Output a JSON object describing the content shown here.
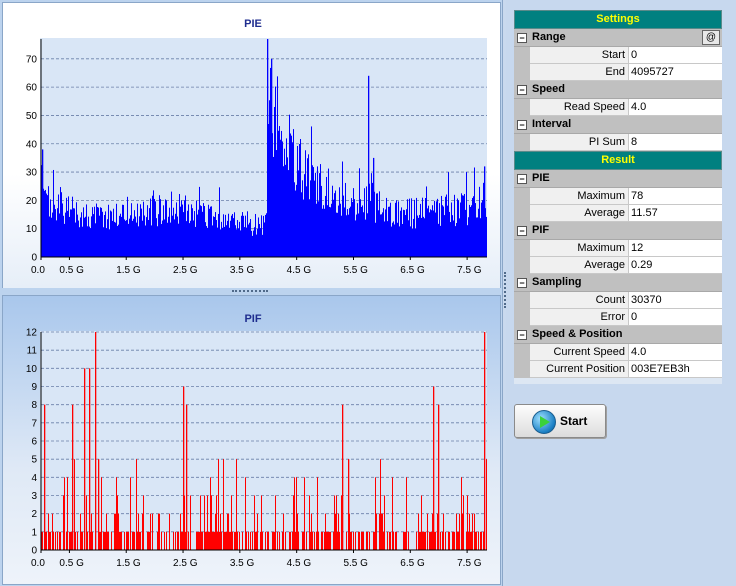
{
  "colors": {
    "pie_series": "#0000ff",
    "pif_series": "#ff0000",
    "header_bg": "#008080",
    "header_text": "#ffff00"
  },
  "chart_data": [
    {
      "type": "bar",
      "title": "PIE",
      "ylim": [
        0,
        77
      ],
      "yticks": [
        "0",
        "10",
        "20",
        "30",
        "40",
        "50",
        "60",
        "70"
      ],
      "ytick_values": [
        0,
        10,
        20,
        30,
        40,
        50,
        60,
        70
      ],
      "xlim": [
        0,
        7.85
      ],
      "xticks": [
        "0.0",
        "0.5 G",
        "1.5 G",
        "2.5 G",
        "3.5 G",
        "4.5 G",
        "5.5 G",
        "6.5 G",
        "7.5 G"
      ],
      "xtick_values": [
        0,
        0.5,
        1.5,
        2.5,
        3.5,
        4.5,
        5.5,
        6.5,
        7.5
      ],
      "grid": true,
      "profile": [
        [
          0,
          30
        ],
        [
          0.1,
          22
        ],
        [
          0.5,
          19
        ],
        [
          0.8,
          17
        ],
        [
          1.0,
          17
        ],
        [
          1.5,
          18
        ],
        [
          2.0,
          19
        ],
        [
          2.3,
          21
        ],
        [
          2.6,
          18
        ],
        [
          3.0,
          16
        ],
        [
          3.5,
          14
        ],
        [
          3.85,
          13
        ],
        [
          3.95,
          14
        ],
        [
          4.0,
          68
        ],
        [
          4.2,
          52
        ],
        [
          4.5,
          38
        ],
        [
          4.8,
          30
        ],
        [
          5.2,
          26
        ],
        [
          5.5,
          22
        ],
        [
          5.7,
          22
        ],
        [
          5.78,
          30
        ],
        [
          5.85,
          22
        ],
        [
          6.0,
          20
        ],
        [
          6.5,
          18
        ],
        [
          7.0,
          19
        ],
        [
          7.5,
          20
        ],
        [
          7.75,
          22
        ],
        [
          7.85,
          26
        ]
      ],
      "spikes": [
        [
          0.02,
          38
        ],
        [
          3.98,
          78
        ],
        [
          4.05,
          70
        ],
        [
          5.75,
          64
        ],
        [
          5.85,
          35
        ],
        [
          7.8,
          32
        ]
      ]
    },
    {
      "type": "bar",
      "title": "PIF",
      "ylim": [
        0,
        12
      ],
      "yticks": [
        "0",
        "1",
        "2",
        "3",
        "4",
        "5",
        "6",
        "7",
        "8",
        "9",
        "10",
        "11",
        "12"
      ],
      "ytick_values": [
        0,
        1,
        2,
        3,
        4,
        5,
        6,
        7,
        8,
        9,
        10,
        11,
        12
      ],
      "xlim": [
        0,
        7.85
      ],
      "xticks": [
        "0.0",
        "0.5 G",
        "1.5 G",
        "2.5 G",
        "3.5 G",
        "4.5 G",
        "5.5 G",
        "6.5 G",
        "7.5 G"
      ],
      "xtick_values": [
        0,
        0.5,
        1.5,
        2.5,
        3.5,
        4.5,
        5.5,
        6.5,
        7.5
      ],
      "grid": true,
      "spikes": [
        [
          0.05,
          8
        ],
        [
          0.55,
          8
        ],
        [
          0.75,
          10
        ],
        [
          0.85,
          10
        ],
        [
          0.95,
          12
        ],
        [
          1.0,
          5
        ],
        [
          2.5,
          9
        ],
        [
          2.55,
          8
        ],
        [
          5.3,
          8
        ],
        [
          5.4,
          5
        ],
        [
          6.9,
          9
        ],
        [
          6.98,
          8
        ],
        [
          7.8,
          12
        ]
      ]
    }
  ],
  "settings": {
    "header": "Settings",
    "range": {
      "label": "Range",
      "at_button": "@",
      "start_label": "Start",
      "start_value": "0",
      "end_label": "End",
      "end_value": "4095727"
    },
    "speed": {
      "label": "Speed",
      "read_speed_label": "Read Speed",
      "read_speed_value": "4.0"
    },
    "interval": {
      "label": "Interval",
      "pi_sum_label": "PI Sum",
      "pi_sum_value": "8"
    }
  },
  "result": {
    "header": "Result",
    "pie": {
      "label": "PIE",
      "max_label": "Maximum",
      "max_value": "78",
      "avg_label": "Average",
      "avg_value": "11.57"
    },
    "pif": {
      "label": "PIF",
      "max_label": "Maximum",
      "max_value": "12",
      "avg_label": "Average",
      "avg_value": "0.29"
    },
    "sampling": {
      "label": "Sampling",
      "count_label": "Count",
      "count_value": "30370",
      "error_label": "Error",
      "error_value": "0"
    },
    "speed_position": {
      "label": "Speed & Position",
      "current_speed_label": "Current Speed",
      "current_speed_value": "4.0",
      "current_position_label": "Current Position",
      "current_position_value": "003E7EB3h"
    }
  },
  "start_button": {
    "label": "Start",
    "icon": "play-icon"
  }
}
